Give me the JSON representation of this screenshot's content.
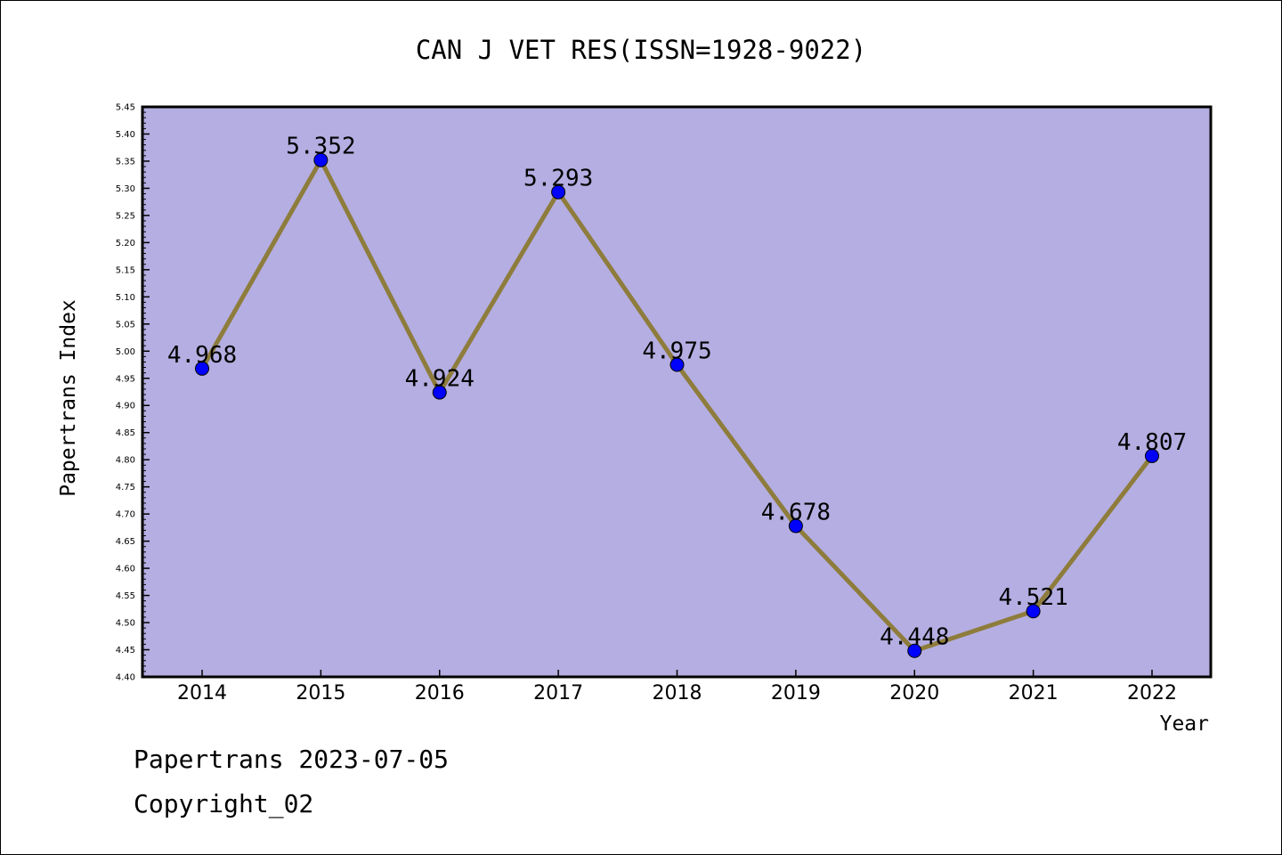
{
  "chart_data": {
    "type": "line",
    "title": "CAN J VET RES(ISSN=1928-9022)",
    "xlabel": "Year",
    "ylabel": "Papertrans Index",
    "categories": [
      "2014",
      "2015",
      "2016",
      "2017",
      "2018",
      "2019",
      "2020",
      "2021",
      "2022"
    ],
    "series": [
      {
        "values": [
          4.968,
          5.352,
          4.924,
          5.293,
          4.975,
          4.678,
          4.448,
          4.521,
          4.807
        ],
        "labels": [
          "4.968",
          "5.352",
          "4.924",
          "5.293",
          "4.975",
          "4.678",
          "4.448",
          "4.521",
          "4.807"
        ]
      }
    ],
    "ylim": [
      4.4,
      5.45
    ],
    "yticks": [
      "4.40",
      "4.45",
      "4.50",
      "4.55",
      "4.60",
      "4.65",
      "4.70",
      "4.75",
      "4.80",
      "4.85",
      "4.90",
      "4.95",
      "5.00",
      "5.05",
      "5.10",
      "5.15",
      "5.20",
      "5.25",
      "5.30",
      "5.35",
      "5.40",
      "5.45"
    ],
    "grid": false,
    "colors": {
      "plot_background": "#b4aee2",
      "line": "#8e7c3c",
      "marker": "#0000ff"
    }
  },
  "footer": {
    "line1": "Papertrans 2023-07-05",
    "line2": "Copyright_02"
  }
}
